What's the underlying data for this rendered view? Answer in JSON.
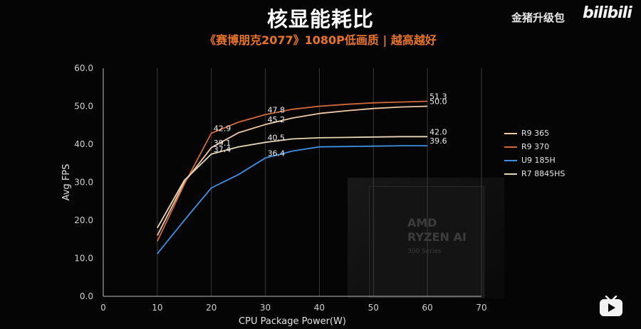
{
  "header": {
    "title": "核显能耗比",
    "subtitle": "《赛博朋克2077》1080P低画质 | 越高越好"
  },
  "watermark": {
    "text": "金猪升级包",
    "logo": "bilibili"
  },
  "chip": {
    "brand": "AMD",
    "model": "RYZEN AI",
    "series": "300 Series"
  },
  "chart_data": {
    "type": "line",
    "xlabel": "CPU Package Power(W)",
    "ylabel": "Avg FPS",
    "xlim": [
      0,
      70
    ],
    "ylim": [
      0,
      60
    ],
    "xticks": [
      0,
      10,
      20,
      30,
      40,
      50,
      60,
      70
    ],
    "xtick_labels": [
      "0",
      "10",
      "20",
      "30",
      "40",
      "50",
      "60",
      "70"
    ],
    "yticks": [
      0,
      10,
      20,
      30,
      40,
      50,
      60
    ],
    "ytick_labels": [
      "0.0",
      "10.0",
      "20.0",
      "30.0",
      "40.0",
      "50.0",
      "60.0"
    ],
    "grid": "vertical",
    "legend_position": "right",
    "series": [
      {
        "name": "R9 365",
        "color": "#f0c8a6",
        "x": [
          10,
          15,
          20,
          25,
          30,
          35,
          40,
          45,
          50,
          55,
          60
        ],
        "y": [
          16.0,
          30.0,
          39.1,
          43.0,
          45.2,
          46.9,
          48.1,
          48.8,
          49.4,
          49.8,
          50.0
        ],
        "labels": [
          {
            "x": 20,
            "y": 39.1,
            "text": "39.1"
          },
          {
            "x": 30,
            "y": 45.2,
            "text": "45.2"
          },
          {
            "x": 60,
            "y": 50.0,
            "text": "50.0"
          }
        ]
      },
      {
        "name": "R9 370",
        "color": "#d2693c",
        "x": [
          10,
          15,
          20,
          25,
          30,
          35,
          40,
          45,
          50,
          55,
          60
        ],
        "y": [
          14.5,
          29.5,
          42.9,
          45.8,
          47.8,
          49.2,
          50.0,
          50.5,
          50.9,
          51.1,
          51.3
        ],
        "labels": [
          {
            "x": 20,
            "y": 42.9,
            "text": "42.9"
          },
          {
            "x": 30,
            "y": 47.8,
            "text": "47.8"
          },
          {
            "x": 60,
            "y": 51.3,
            "text": "51.3"
          }
        ]
      },
      {
        "name": "U9 185H",
        "color": "#3f8fe0",
        "x": [
          10,
          15,
          20,
          25,
          30,
          35,
          40,
          45,
          50,
          55,
          60
        ],
        "y": [
          11.2,
          20.0,
          28.5,
          32.0,
          36.4,
          38.2,
          39.3,
          39.4,
          39.5,
          39.6,
          39.6
        ],
        "labels": [
          {
            "x": 30,
            "y": 36.4,
            "text": "36.4"
          },
          {
            "x": 60,
            "y": 39.6,
            "text": "39.6"
          }
        ]
      },
      {
        "name": "R7 8845HS",
        "color": "#e7d6b5",
        "x": [
          10,
          15,
          20,
          25,
          30,
          35,
          40,
          45,
          50,
          55,
          60
        ],
        "y": [
          18.0,
          30.5,
          37.4,
          39.3,
          40.5,
          41.4,
          41.7,
          41.8,
          41.9,
          42.0,
          42.0
        ],
        "labels": [
          {
            "x": 20,
            "y": 37.4,
            "text": "37.4"
          },
          {
            "x": 30,
            "y": 40.5,
            "text": "40.5"
          },
          {
            "x": 60,
            "y": 42.0,
            "text": "42.0"
          }
        ]
      }
    ]
  }
}
